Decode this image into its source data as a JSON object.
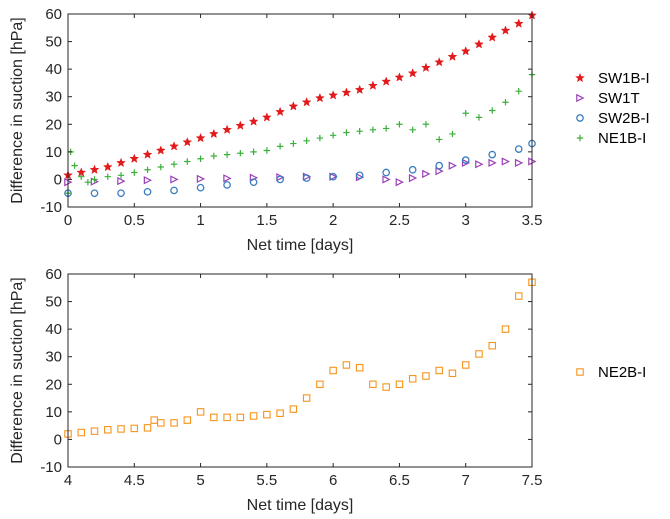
{
  "chart_data": [
    {
      "type": "scatter",
      "xlabel": "Net time [days]",
      "ylabel": "Difference in suction [hPa]",
      "xlim": [
        0,
        3.5
      ],
      "ylim": [
        -10,
        60
      ],
      "xticks": [
        "0",
        "0.5",
        "1",
        "1.5",
        "2",
        "2.5",
        "3",
        "3.5"
      ],
      "yticks": [
        "-10",
        "0",
        "10",
        "20",
        "30",
        "40",
        "50",
        "60"
      ],
      "grid": false,
      "legend": "right",
      "series": [
        {
          "name": "SW1B-I",
          "marker": "star",
          "color": "#e31a1c",
          "x": [
            0,
            0.1,
            0.2,
            0.3,
            0.4,
            0.5,
            0.6,
            0.7,
            0.8,
            0.9,
            1.0,
            1.1,
            1.2,
            1.3,
            1.4,
            1.5,
            1.6,
            1.7,
            1.8,
            1.9,
            2.0,
            2.1,
            2.2,
            2.3,
            2.4,
            2.5,
            2.6,
            2.7,
            2.8,
            2.9,
            3.0,
            3.1,
            3.2,
            3.3,
            3.4,
            3.5
          ],
          "y": [
            1.5,
            2.5,
            3.5,
            4.5,
            6,
            7.5,
            9,
            10.5,
            12,
            13.5,
            15,
            16.5,
            18,
            19.5,
            21,
            22.5,
            24.5,
            26.5,
            28,
            29.5,
            30.5,
            31.5,
            32.5,
            34,
            35.5,
            37,
            38.5,
            40.5,
            42.5,
            44.5,
            46.5,
            49,
            51.5,
            54,
            56.5,
            59.5
          ]
        },
        {
          "name": "SW1T",
          "marker": "triangle-right",
          "color": "#9b3fb5",
          "x": [
            0,
            0.2,
            0.4,
            0.6,
            0.8,
            1.0,
            1.2,
            1.4,
            1.6,
            1.8,
            2.0,
            2.2,
            2.4,
            2.5,
            2.6,
            2.7,
            2.8,
            2.9,
            3.0,
            3.1,
            3.2,
            3.3,
            3.4,
            3.5
          ],
          "y": [
            -1,
            -0.8,
            -0.6,
            -0.3,
            0,
            0.2,
            0.4,
            0.6,
            0.8,
            1,
            1,
            0.8,
            0,
            -1,
            0.5,
            2,
            3,
            5,
            6,
            5.5,
            6,
            6.5,
            6,
            6.5
          ]
        },
        {
          "name": "SW2B-I",
          "marker": "circle",
          "color": "#3a7dc1",
          "x": [
            0,
            0.2,
            0.4,
            0.6,
            0.8,
            1.0,
            1.2,
            1.4,
            1.6,
            1.8,
            2.0,
            2.2,
            2.4,
            2.6,
            2.8,
            3.0,
            3.2,
            3.4,
            3.5
          ],
          "y": [
            -5,
            -5,
            -5,
            -4.5,
            -4,
            -3,
            -2,
            -1,
            0,
            0.5,
            1,
            1.5,
            2.5,
            3.5,
            5,
            7,
            9,
            11,
            13
          ]
        },
        {
          "name": "NE1B-I",
          "marker": "plus",
          "color": "#3ab03a",
          "x": [
            0,
            0.02,
            0.05,
            0.1,
            0.15,
            0.2,
            0.3,
            0.4,
            0.5,
            0.6,
            0.7,
            0.8,
            0.9,
            1.0,
            1.1,
            1.2,
            1.3,
            1.4,
            1.5,
            1.6,
            1.7,
            1.8,
            1.9,
            2.0,
            2.1,
            2.2,
            2.3,
            2.4,
            2.5,
            2.6,
            2.7,
            2.8,
            2.9,
            3.0,
            3.1,
            3.2,
            3.3,
            3.4,
            3.5
          ],
          "y": [
            -5,
            10,
            5,
            1,
            -1,
            0,
            1,
            1.5,
            2.5,
            3.5,
            4.5,
            5.5,
            6.5,
            7.5,
            8.5,
            9,
            9.5,
            10,
            10.5,
            12,
            13,
            14,
            15,
            16,
            17,
            17.5,
            18,
            18.5,
            20,
            18,
            20,
            14.5,
            16.5,
            24,
            22.5,
            25,
            28,
            32,
            38
          ]
        }
      ]
    },
    {
      "type": "scatter",
      "xlabel": "Net time [days]",
      "ylabel": "Difference in suction [hPa]",
      "xlim": [
        4,
        7.5
      ],
      "ylim": [
        -10,
        60
      ],
      "xticks": [
        "4",
        "4.5",
        "5",
        "5.5",
        "6",
        "6.5",
        "7",
        "7.5"
      ],
      "yticks": [
        "-10",
        "0",
        "10",
        "20",
        "30",
        "40",
        "50",
        "60"
      ],
      "grid": false,
      "legend": "right",
      "series": [
        {
          "name": "NE2B-I",
          "marker": "square",
          "color": "#f7941d",
          "x": [
            4.0,
            4.1,
            4.2,
            4.3,
            4.4,
            4.5,
            4.6,
            4.65,
            4.7,
            4.8,
            4.9,
            5.0,
            5.1,
            5.2,
            5.3,
            5.4,
            5.5,
            5.6,
            5.7,
            5.8,
            5.9,
            6.0,
            6.1,
            6.2,
            6.3,
            6.4,
            6.5,
            6.6,
            6.7,
            6.8,
            6.9,
            7.0,
            7.1,
            7.2,
            7.3,
            7.4,
            7.5
          ],
          "y": [
            2,
            2.5,
            3,
            3.5,
            3.8,
            4,
            4.2,
            7,
            6,
            6,
            7,
            10,
            8,
            8,
            8,
            8.5,
            9,
            9.5,
            11,
            15,
            20,
            25,
            27,
            26,
            20,
            19,
            20,
            22,
            23,
            25,
            24,
            27,
            31,
            34,
            40,
            52,
            57
          ]
        }
      ]
    }
  ]
}
